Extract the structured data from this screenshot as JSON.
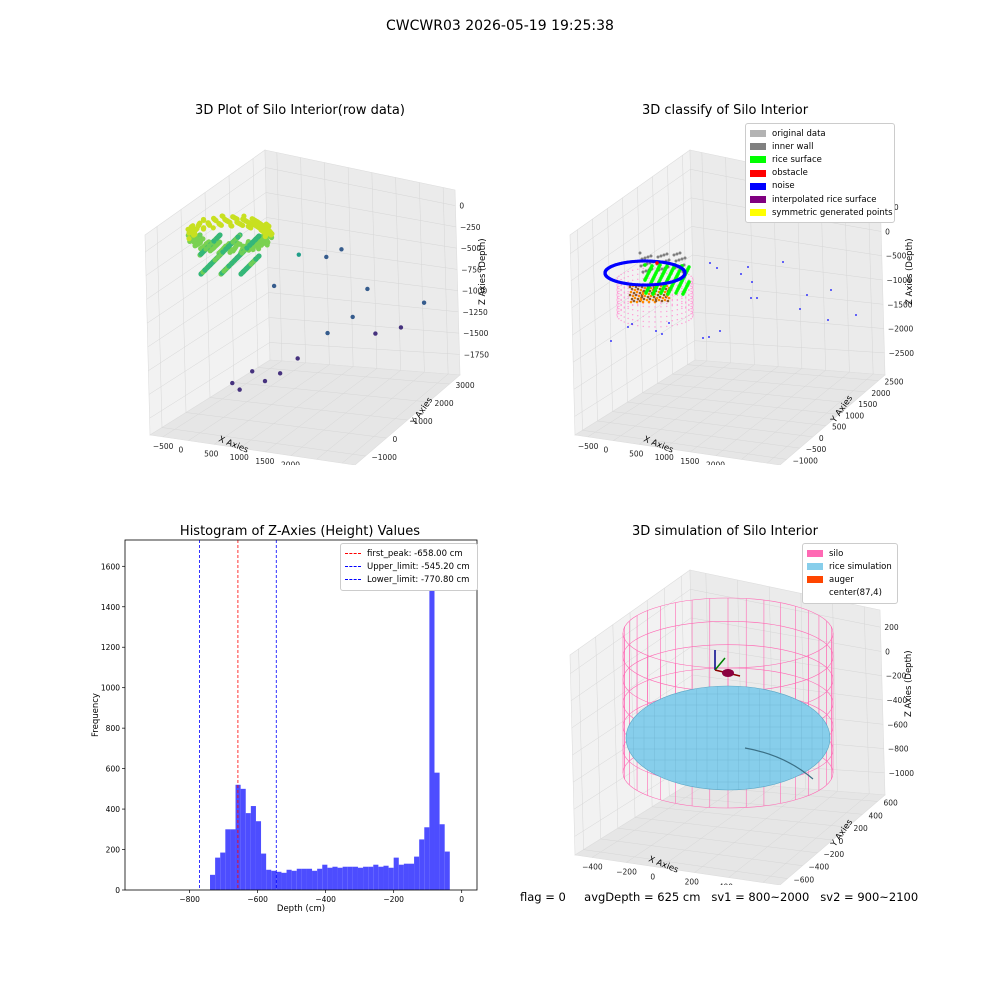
{
  "suptitle": "CWCWR03 2026-05-19 19:25:38",
  "panels": {
    "raw": {
      "title": "3D Plot of Silo Interior(row data)",
      "xlabel": "X Axies",
      "ylabel": "Y Axies",
      "zlabel": "Z Axies (Depth)",
      "x_ticks": [
        "−500",
        "0",
        "500",
        "1000",
        "1500",
        "2000",
        "2500",
        "3000"
      ],
      "y_ticks": [
        "−1000",
        "0",
        "1000",
        "2000",
        "3000"
      ],
      "z_ticks": [
        "0",
        "−250",
        "−500",
        "−750",
        "−1000",
        "−1250",
        "−1500",
        "−1750"
      ]
    },
    "classify": {
      "title": "3D classify of Silo Interior",
      "xlabel": "X Axies",
      "ylabel": "Y Axies",
      "zlabel": "Z Axies (Depth)",
      "x_ticks": [
        "−500",
        "0",
        "500",
        "1000",
        "1500",
        "2000",
        "2500",
        "3000"
      ],
      "y_ticks": [
        "−1000",
        "−500",
        "0",
        "500",
        "1000",
        "1500",
        "2000",
        "2500"
      ],
      "z_ticks": [
        "500",
        "0",
        "−500",
        "−1000",
        "−1500",
        "−2000",
        "−2500"
      ],
      "z_tick_top_partial": "00",
      "legend": [
        {
          "label": "original data",
          "color": "#b3b3b3"
        },
        {
          "label": "inner wall",
          "color": "#808080"
        },
        {
          "label": "rice surface",
          "color": "#00ff00"
        },
        {
          "label": "obstacle",
          "color": "#ff0000"
        },
        {
          "label": "noise",
          "color": "#0000ff"
        },
        {
          "label": "interpolated rice surface",
          "color": "#800080"
        },
        {
          "label": "symmetric generated points",
          "color": "#ffff00"
        }
      ]
    },
    "histogram": {
      "title": "Histogram of Z-Axies (Height) Values",
      "xlabel": "Depth (cm)",
      "ylabel": "Frequency",
      "legend": [
        {
          "label": "first_peak: -658.00 cm",
          "color": "#ff0000"
        },
        {
          "label": "Upper_limit: -545.20 cm",
          "color": "#0000ff"
        },
        {
          "label": "Lower_limit: -770.80 cm",
          "color": "#0000ff"
        }
      ]
    },
    "simulation": {
      "title": "3D simulation of Silo Interior",
      "xlabel": "X Axies",
      "ylabel": "Y Axies",
      "zlabel": "Z Axies (Depth)",
      "x_ticks": [
        "−400",
        "−200",
        "0",
        "200",
        "400",
        "600"
      ],
      "y_ticks": [
        "−600",
        "−400",
        "−200",
        "0",
        "200",
        "400",
        "600"
      ],
      "z_ticks": [
        "200",
        "0",
        "−200",
        "−400",
        "−600",
        "−800",
        "−1000"
      ],
      "legend": [
        {
          "label": "silo",
          "color": "#ff69b4"
        },
        {
          "label": "rice simulation",
          "color": "#87ceeb"
        },
        {
          "label": "auger",
          "color": "#ff4500"
        },
        {
          "label": "center(87,4)",
          "color": "#ffffff"
        }
      ]
    }
  },
  "status": {
    "flag": "flag = 0",
    "avg_depth": "avgDepth = 625 cm",
    "sv1": "sv1 = 800~2000",
    "sv2": "sv2 = 900~2100"
  },
  "chart_data": [
    {
      "type": "scatter",
      "title": "3D Plot of Silo Interior(row data)",
      "xlabel": "X Axies",
      "ylabel": "Y Axies",
      "zlabel": "Z Axies (Depth)",
      "xlim": [
        -750,
        3200
      ],
      "ylim": [
        -1100,
        3300
      ],
      "zlim": [
        -1900,
        50
      ],
      "points": [
        {
          "x": 100,
          "y": 500,
          "z": -1650
        },
        {
          "x": 150,
          "y": 700,
          "z": -1750
        },
        {
          "x": 300,
          "y": 900,
          "z": -1600
        },
        {
          "x": 500,
          "y": 1000,
          "z": -1700
        },
        {
          "x": 700,
          "y": 1200,
          "z": -1650
        },
        {
          "x": 900,
          "y": 1500,
          "z": -1550
        },
        {
          "x": 1200,
          "y": 2100,
          "z": -1400
        },
        {
          "x": 1500,
          "y": 2500,
          "z": -1300
        },
        {
          "x": 1800,
          "y": 2800,
          "z": -1500
        },
        {
          "x": 2200,
          "y": 3000,
          "z": -1450
        },
        {
          "x": 600,
          "y": 2200,
          "z": -700
        },
        {
          "x": 900,
          "y": 2700,
          "z": -800
        },
        {
          "x": 1100,
          "y": 2900,
          "z": -750
        },
        {
          "x": 400,
          "y": 1600,
          "z": -900
        },
        {
          "x": 1600,
          "y": 2900,
          "z": -1100
        },
        {
          "x": 2600,
          "y": 3100,
          "z": -1200
        }
      ]
    },
    {
      "type": "scatter",
      "title": "3D classify of Silo Interior",
      "xlabel": "X Axies",
      "ylabel": "Y Axies",
      "zlabel": "Z Axies (Depth)",
      "xlim": [
        -750,
        3200
      ],
      "ylim": [
        -1100,
        2700
      ],
      "zlim": [
        -2700,
        1100
      ],
      "series": [
        {
          "name": "original data"
        },
        {
          "name": "inner wall"
        },
        {
          "name": "rice surface"
        },
        {
          "name": "obstacle"
        },
        {
          "name": "noise"
        },
        {
          "name": "interpolated rice surface"
        },
        {
          "name": "symmetric generated points"
        }
      ]
    },
    {
      "type": "bar",
      "title": "Histogram of Z-Axies (Height) Values",
      "xlabel": "Depth (cm)",
      "ylabel": "Frequency",
      "xlim": [
        -990,
        45
      ],
      "ylim": [
        0,
        1730
      ],
      "x_ticks": [
        -800,
        -600,
        -400,
        -200,
        0
      ],
      "y_ticks": [
        0,
        200,
        400,
        600,
        800,
        1000,
        1200,
        1400,
        1600
      ],
      "bin_width": 15,
      "bins": [
        {
          "x0": -740,
          "v": 75
        },
        {
          "x0": -725,
          "v": 160
        },
        {
          "x0": -710,
          "v": 185
        },
        {
          "x0": -695,
          "v": 300
        },
        {
          "x0": -680,
          "v": 300
        },
        {
          "x0": -665,
          "v": 520
        },
        {
          "x0": -650,
          "v": 500
        },
        {
          "x0": -635,
          "v": 380
        },
        {
          "x0": -620,
          "v": 415
        },
        {
          "x0": -605,
          "v": 340
        },
        {
          "x0": -590,
          "v": 180
        },
        {
          "x0": -575,
          "v": 100
        },
        {
          "x0": -560,
          "v": 95
        },
        {
          "x0": -545,
          "v": 90
        },
        {
          "x0": -530,
          "v": 85
        },
        {
          "x0": -515,
          "v": 100
        },
        {
          "x0": -500,
          "v": 95
        },
        {
          "x0": -485,
          "v": 105
        },
        {
          "x0": -470,
          "v": 105
        },
        {
          "x0": -455,
          "v": 105
        },
        {
          "x0": -440,
          "v": 95
        },
        {
          "x0": -425,
          "v": 105
        },
        {
          "x0": -410,
          "v": 125
        },
        {
          "x0": -395,
          "v": 110
        },
        {
          "x0": -380,
          "v": 115
        },
        {
          "x0": -365,
          "v": 110
        },
        {
          "x0": -350,
          "v": 115
        },
        {
          "x0": -335,
          "v": 115
        },
        {
          "x0": -320,
          "v": 115
        },
        {
          "x0": -305,
          "v": 110
        },
        {
          "x0": -290,
          "v": 115
        },
        {
          "x0": -275,
          "v": 115
        },
        {
          "x0": -260,
          "v": 125
        },
        {
          "x0": -245,
          "v": 115
        },
        {
          "x0": -230,
          "v": 120
        },
        {
          "x0": -215,
          "v": 110
        },
        {
          "x0": -200,
          "v": 160
        },
        {
          "x0": -185,
          "v": 125
        },
        {
          "x0": -170,
          "v": 130
        },
        {
          "x0": -155,
          "v": 130
        },
        {
          "x0": -140,
          "v": 165
        },
        {
          "x0": -125,
          "v": 250
        },
        {
          "x0": -110,
          "v": 310
        },
        {
          "x0": -95,
          "v": 1620
        },
        {
          "x0": -80,
          "v": 580
        },
        {
          "x0": -65,
          "v": 325
        },
        {
          "x0": -50,
          "v": 190
        }
      ],
      "vlines": [
        {
          "name": "first_peak",
          "x": -658.0,
          "color": "#ff0000"
        },
        {
          "name": "Upper_limit",
          "x": -545.2,
          "color": "#0000ff"
        },
        {
          "name": "Lower_limit",
          "x": -770.8,
          "color": "#0000ff"
        }
      ]
    },
    {
      "type": "scatter",
      "title": "3D simulation of Silo Interior",
      "xlabel": "X Axies",
      "ylabel": "Y Axies",
      "zlabel": "Z Axies (Depth)",
      "xlim": [
        -500,
        700
      ],
      "ylim": [
        -650,
        650
      ],
      "zlim": [
        -1050,
        300
      ],
      "series": [
        {
          "name": "silo"
        },
        {
          "name": "rice simulation"
        },
        {
          "name": "auger"
        },
        {
          "name": "center(87,4)"
        }
      ]
    }
  ]
}
